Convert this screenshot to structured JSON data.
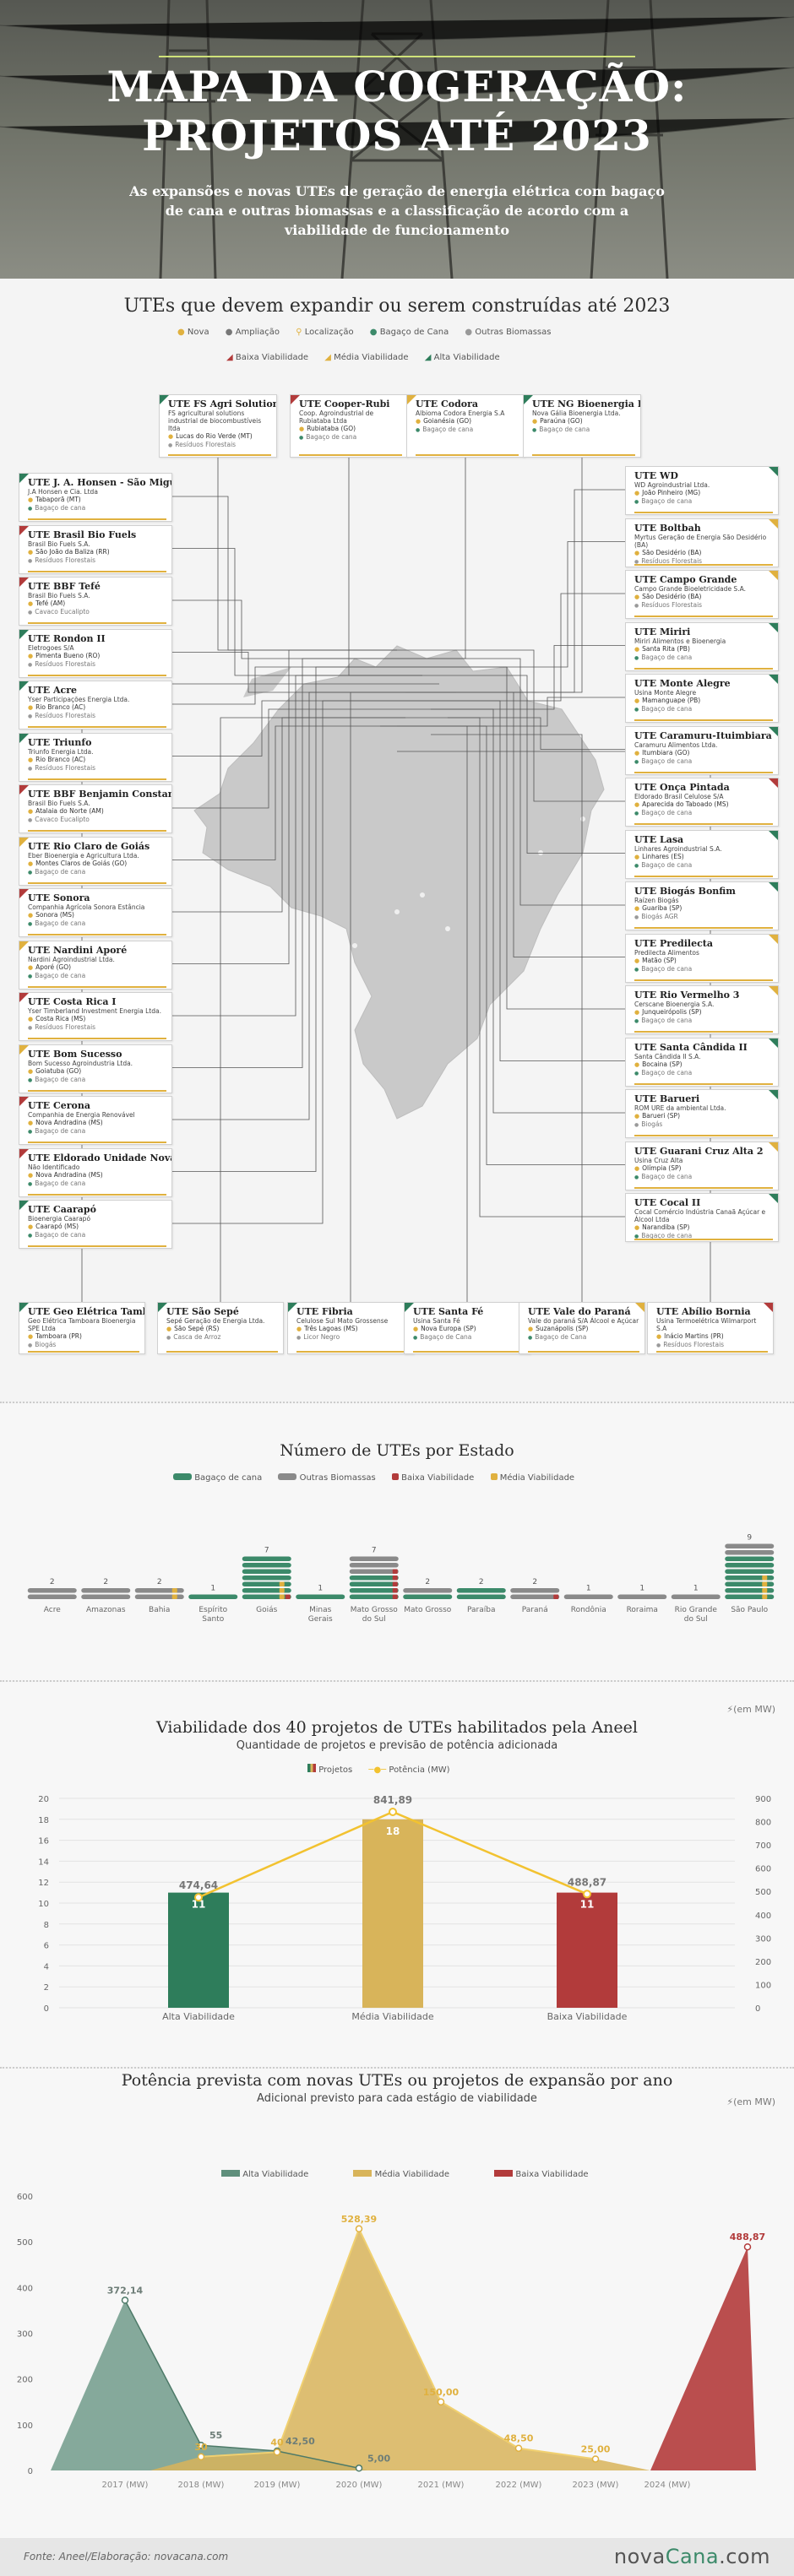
{
  "header": {
    "title_line1": "MAPA DA COGERAÇÃO:",
    "title_line2": "PROJETOS ATÉ 2023",
    "subtitle": "As expansões e novas UTEs de geração de energia elétrica com bagaço de cana e outras biomassas e a classificação de acordo com a viabilidade de funcionamento"
  },
  "map_section": {
    "title": "UTEs que devem expandir ou serem construídas até 2023",
    "legend_row1": [
      "Nova",
      "Ampliação",
      "Localização",
      "Bagaço de Cana",
      "Outras Biomassas"
    ],
    "legend_row2": [
      "Baixa Viabilidade",
      "Média Viabilidade",
      "Alta Viabilidade"
    ]
  },
  "top_cards": [
    {
      "name": "UTE FS Agri Solutions",
      "company": "FS agricultural solutions industrial de biocombustíveis ltda",
      "location": "Lucas do Rio Verde (MT)",
      "fuel": "Resíduos Florestais",
      "viab": "g"
    },
    {
      "name": "UTE Cooper-Rubi",
      "company": "Coop. Agroindustrial de Rubiataba Ltda",
      "location": "Rubiataba (GO)",
      "fuel": "Bagaço de cana",
      "viab": "r"
    },
    {
      "name": "UTE Codora",
      "company": "Albioma Codora Energia S.A",
      "location": "Goianésia (GO)",
      "fuel": "Bagaço de cana",
      "viab": "y"
    },
    {
      "name": "UTE NG Bioenergia I",
      "company": "Nova Gália Bioenergia Ltda.",
      "location": "Paraúna (GO)",
      "fuel": "Bagaço de cana",
      "viab": "g"
    }
  ],
  "left_cards": [
    {
      "name": "UTE J. A. Honsen - São Miguel",
      "company": "J.A Honsen e Cia. Ltda",
      "location": "Tabaporã (MT)",
      "fuel": "Bagaço de cana",
      "viab": "g"
    },
    {
      "name": "UTE Brasil Bio Fuels",
      "company": "Brasil Bio Fuels S.A.",
      "location": "São João da Baliza (RR)",
      "fuel": "Resíduos Florestais",
      "viab": "r"
    },
    {
      "name": "UTE BBF Tefé",
      "company": "Brasil Bio Fuels S.A.",
      "location": "Tefé (AM)",
      "fuel": "Cavaco Eucalipto",
      "viab": "r"
    },
    {
      "name": "UTE Rondon II",
      "company": "Eletrogoes S/A",
      "location": "Pimenta Bueno (RO)",
      "fuel": "Resíduos Florestais",
      "viab": "g"
    },
    {
      "name": "UTE Acre",
      "company": "Yser Participações Energia Ltda.",
      "location": "Rio Branco (AC)",
      "fuel": "Resíduos Florestais",
      "viab": "g"
    },
    {
      "name": "UTE Triunfo",
      "company": "Triunfo Energia Ltda.",
      "location": "Rio Branco (AC)",
      "fuel": "Resíduos Florestais",
      "viab": "g"
    },
    {
      "name": "UTE BBF Benjamin Constant",
      "company": "Brasil Bio Fuels S.A.",
      "location": "Atalaia do Norte (AM)",
      "fuel": "Cavaco Eucalipto",
      "viab": "r"
    },
    {
      "name": "UTE Rio Claro de Goiás",
      "company": "Eber Bioenergia e Agricultura Ltda.",
      "location": "Montes Claros de Goiás (GO)",
      "fuel": "Bagaço de cana",
      "viab": "y"
    },
    {
      "name": "UTE Sonora",
      "company": "Companhia Agrícola Sonora Estância",
      "location": "Sonora (MS)",
      "fuel": "Bagaço de cana",
      "viab": "r"
    },
    {
      "name": "UTE Nardini Aporé",
      "company": "Nardini Agroindustrial Ltda.",
      "location": "Aporé (GO)",
      "fuel": "Bagaço de cana",
      "viab": "y"
    },
    {
      "name": "UTE Costa Rica I",
      "company": "Yser Timberland Investment Energia Ltda.",
      "location": "Costa Rica (MS)",
      "fuel": "Resíduos Florestais",
      "viab": "r"
    },
    {
      "name": "UTE Bom Sucesso",
      "company": "Bom Sucesso Agroindustria Ltda.",
      "location": "Goiatuba (GO)",
      "fuel": "Bagaço de cana",
      "viab": "y"
    },
    {
      "name": "UTE Cerona",
      "company": "Companhia de Energia Renovável",
      "location": "Nova Andradina (MS)",
      "fuel": "Bagaço de cana",
      "viab": "r"
    },
    {
      "name": "UTE Eldorado Unidade Nova Andradina",
      "company": "Não Identificado",
      "location": "Nova Andradina (MS)",
      "fuel": "Bagaço de cana",
      "viab": "r"
    },
    {
      "name": "UTE Caarapó",
      "company": "Bioenergia Caarapó",
      "location": "Caarapó (MS)",
      "fuel": "Bagaço de cana",
      "viab": "g"
    }
  ],
  "right_cards": [
    {
      "name": "UTE WD",
      "company": "WD Agroindustrial Ltda.",
      "location": "João Pinheiro (MG)",
      "fuel": "Bagaço de cana",
      "viab": "g"
    },
    {
      "name": "UTE Boltbah",
      "company": "Myrtus Geração de Energia São Desidério (BA)",
      "location": "São Desidério (BA)",
      "fuel": "Resíduos Florestais",
      "viab": "y"
    },
    {
      "name": "UTE Campo Grande",
      "company": "Campo Grande Bioeletricidade S.A.",
      "location": "São Desidério (BA)",
      "fuel": "Resíduos Florestais",
      "viab": "y"
    },
    {
      "name": "UTE Miriri",
      "company": "Miriri Alimentos e Bioenergia",
      "location": "Santa Rita (PB)",
      "fuel": "Bagaço de cana",
      "viab": "g"
    },
    {
      "name": "UTE Monte Alegre",
      "company": "Usina Monte Alegre",
      "location": "Mamanguape (PB)",
      "fuel": "Bagaço de cana",
      "viab": "g"
    },
    {
      "name": "UTE Caramuru-Ituimbiara",
      "company": "Caramuru Alimentos Ltda.",
      "location": "Itumbiara (GO)",
      "fuel": "Bagaço de cana",
      "viab": "g"
    },
    {
      "name": "UTE Onça Pintada",
      "company": "Eldorado Brasil Celulose S/A",
      "location": "Aparecida do Taboado (MS)",
      "fuel": "Bagaço de cana",
      "viab": "r"
    },
    {
      "name": "UTE Lasa",
      "company": "Linhares Agroindustrial S.A.",
      "location": "Linhares (ES)",
      "fuel": "Bagaço de cana",
      "viab": "g"
    },
    {
      "name": "UTE Biogás Bonfim",
      "company": "Raízen Biogás",
      "location": "Guariba (SP)",
      "fuel": "Biogás AGR",
      "viab": "g"
    },
    {
      "name": "UTE Predilecta",
      "company": "Predilecta Alimentos",
      "location": "Matão (SP)",
      "fuel": "Bagaço de cana",
      "viab": "y"
    },
    {
      "name": "UTE Rio Vermelho 3",
      "company": "Cerscane Bioenergia S.A.",
      "location": "Junqueirópolis (SP)",
      "fuel": "Bagaço de cana",
      "viab": "y"
    },
    {
      "name": "UTE Santa Cândida II",
      "company": "Santa Cândida II S.A.",
      "location": "Bocaina (SP)",
      "fuel": "Bagaço de cana",
      "viab": "g"
    },
    {
      "name": "UTE Barueri",
      "company": "ROM URE da ambiental Ltda.",
      "location": "Barueri (SP)",
      "fuel": "Biogás",
      "viab": "g"
    },
    {
      "name": "UTE Guarani Cruz Alta 2",
      "company": "Usina Cruz Alta",
      "location": "Olímpia (SP)",
      "fuel": "Bagaço de cana",
      "viab": "y"
    },
    {
      "name": "UTE Cocal II",
      "company": "Cocal Comércio Indústria Canaã Açúcar e Álcool Ltda",
      "location": "Narandiba (SP)",
      "fuel": "Bagaço de cana",
      "viab": "g"
    }
  ],
  "bottom_cards": [
    {
      "name": "UTE Geo Elétrica Tamboara",
      "company": "Geo Elétrica Tamboara Bioenergia SPE Ltda",
      "location": "Tamboara (PR)",
      "fuel": "Biogás",
      "viab": "g"
    },
    {
      "name": "UTE São Sepé",
      "company": "Sepé Geração de Energia Ltda.",
      "location": "São Sepé (RS)",
      "fuel": "Casca de Arroz",
      "viab": "g"
    },
    {
      "name": "UTE Fibria",
      "company": "Celulose Sul Mato Grossense",
      "location": "Três Lagoas (MS)",
      "fuel": "Licor Negro",
      "viab": "g"
    },
    {
      "name": "UTE Santa Fé",
      "company": "Usina Santa Fé",
      "location": "Nova Europa (SP)",
      "fuel": "Bagaço de Cana",
      "viab": "g"
    },
    {
      "name": "UTE Vale do Paraná",
      "company": "Vale do paraná S/A Álcool e Açúcar",
      "location": "Suzanápolis (SP)",
      "fuel": "Bagaço de Cana",
      "viab": "y"
    },
    {
      "name": "UTE Abílio Bornia",
      "company": "Usina Termoelétrica Wilmarport S.A",
      "location": "Inácio Martins (PR)",
      "fuel": "Resíduos Florestais",
      "viab": "r"
    }
  ],
  "state_chart": {
    "title": "Número de UTEs por Estado",
    "legend": [
      "Bagaço de cana",
      "Outras Biomassas",
      "Baixa Viabilidade",
      "Média Viabilidade"
    ],
    "colors": {
      "cane": "#3c8a6a",
      "other": "#8a8a8a",
      "low": "#b23b3b",
      "mid": "#e0b13f"
    }
  },
  "viab_section": {
    "title": "Viabilidade dos 40 projetos de UTEs habilitados pela Aneel",
    "subtitle": "Quantidade de projetos e previsão de potência adicionada",
    "unit_note": "(em MW)",
    "legend": [
      "Projetos",
      "Potência (MW)"
    ]
  },
  "year_section": {
    "title": "Potência prevista com novas UTEs ou projetos de expansão por ano",
    "subtitle": "Adicional previsto para cada estágio de viabilidade",
    "unit_note": "(em MW)",
    "legend": [
      "Alta Viabilidade",
      "Média Viabilidade",
      "Baixa Viabilidade"
    ]
  },
  "footer": {
    "source": "Fonte: Aneel/Elaboração: novacana.com",
    "logo_a": "nova",
    "logo_b": "Cana",
    "logo_c": ".com"
  },
  "chart_data": [
    {
      "type": "bar",
      "title": "Número de UTEs por Estado",
      "categories": [
        "Acre",
        "Amazonas",
        "Bahia",
        "Espírito Santo",
        "Goiás",
        "Minas Gerais",
        "Mato Grosso do Sul",
        "Mato Grosso",
        "Paraíba",
        "Paraná",
        "Rondônia",
        "Roraima",
        "Rio Grande do Sul",
        "São Paulo"
      ],
      "values": [
        2,
        2,
        2,
        1,
        7,
        1,
        7,
        2,
        2,
        2,
        1,
        1,
        1,
        9
      ],
      "series": [
        {
          "name": "Bagaço de cana",
          "values": [
            0,
            0,
            0,
            1,
            7,
            1,
            4,
            1,
            2,
            0,
            0,
            0,
            0,
            7
          ]
        },
        {
          "name": "Outras Biomassas",
          "values": [
            2,
            2,
            2,
            0,
            0,
            0,
            3,
            1,
            0,
            2,
            1,
            1,
            1,
            2
          ]
        },
        {
          "name": "Baixa Viabilidade",
          "values": [
            0,
            0,
            0,
            0,
            1,
            0,
            5,
            0,
            0,
            1,
            0,
            0,
            0,
            0
          ]
        },
        {
          "name": "Média Viabilidade",
          "values": [
            0,
            0,
            2,
            0,
            3,
            0,
            0,
            0,
            0,
            0,
            0,
            0,
            0,
            4
          ]
        }
      ]
    },
    {
      "type": "bar",
      "title": "Viabilidade dos 40 projetos de UTEs habilitados pela Aneel",
      "categories": [
        "Alta Viabilidade",
        "Média Viabilidade",
        "Baixa Viabilidade"
      ],
      "series": [
        {
          "name": "Projetos",
          "values": [
            11,
            18,
            11
          ]
        },
        {
          "name": "Potência (MW)",
          "values": [
            474.64,
            841.89,
            488.87
          ]
        }
      ],
      "value_labels": [
        "474,64",
        "841,89",
        "488,87"
      ],
      "ylim": [
        0,
        20
      ],
      "y2lim": [
        0,
        900
      ],
      "yticks": [
        "0",
        "2",
        "4",
        "6",
        "8",
        "10",
        "12",
        "14",
        "16",
        "18",
        "20"
      ],
      "y2ticks": [
        "0",
        "100",
        "200",
        "300",
        "400",
        "500",
        "600",
        "700",
        "800",
        "900"
      ]
    },
    {
      "type": "area",
      "title": "Potência prevista com novas UTEs ou projetos de expansão por ano",
      "categories": [
        "2017 (MW)",
        "2018 (MW)",
        "2019 (MW)",
        "2020 (MW)",
        "2021 (MW)",
        "2022 (MW)",
        "2023 (MW)",
        "2024 (MW)"
      ],
      "series": [
        {
          "name": "Alta Viabilidade",
          "values": [
            372.14,
            55,
            42.5,
            5,
            0,
            0,
            0,
            0
          ],
          "labels": [
            "372,14",
            "55",
            "42,50",
            "5,00",
            "",
            "",
            "",
            ""
          ]
        },
        {
          "name": "Média Viabilidade",
          "values": [
            0,
            30,
            40,
            528.39,
            150,
            48.5,
            25,
            0
          ],
          "labels": [
            "",
            "30",
            "40",
            "528,39",
            "150,00",
            "48,50",
            "25,00",
            ""
          ]
        },
        {
          "name": "Baixa Viabilidade",
          "values": [
            0,
            0,
            0,
            0,
            0,
            0,
            0,
            488.87
          ],
          "labels": [
            "",
            "",
            "",
            "",
            "",
            "",
            "",
            "488,87"
          ]
        }
      ],
      "ylim": [
        0,
        600
      ],
      "yticks": [
        "0",
        "100",
        "200",
        "300",
        "400",
        "500",
        "600"
      ]
    }
  ]
}
